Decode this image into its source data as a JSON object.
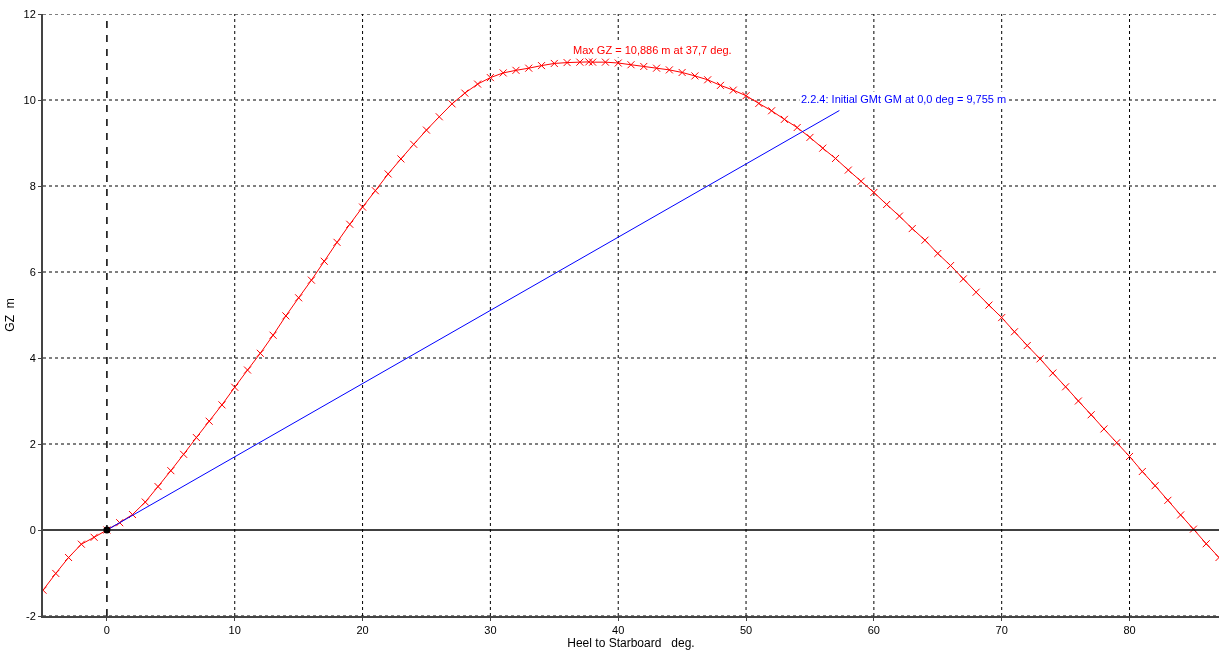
{
  "chart_data": {
    "type": "line",
    "xlabel": "Heel to Starboard   deg.",
    "ylabel": "GZ  m",
    "xlim": [
      -5,
      87
    ],
    "xticks": [
      0,
      10,
      20,
      30,
      40,
      50,
      60,
      70,
      80
    ],
    "ylim": [
      -2,
      12
    ],
    "yticks": [
      -2,
      0,
      2,
      4,
      6,
      8,
      10,
      12
    ],
    "grid": true,
    "series": [
      {
        "color": "#ff0000",
        "marker": "cross",
        "line_style": "solid",
        "x": [
          -5,
          -4,
          -3,
          -2,
          -1,
          0,
          1,
          2,
          3,
          4,
          5,
          6,
          7,
          8,
          9,
          10,
          11,
          12,
          13,
          14,
          15,
          16,
          17,
          18,
          19,
          20,
          21,
          22,
          23,
          24,
          25,
          26,
          27,
          28,
          29,
          30,
          31,
          32,
          33,
          34,
          35,
          36,
          37,
          37.7,
          38,
          39,
          40,
          41,
          42,
          43,
          44,
          45,
          46,
          47,
          48,
          49,
          50,
          51,
          52,
          53,
          54,
          55,
          56,
          57,
          58,
          59,
          60,
          61,
          62,
          63,
          64,
          65,
          66,
          67,
          68,
          69,
          70,
          71,
          72,
          73,
          74,
          75,
          76,
          77,
          78,
          79,
          80,
          81,
          82,
          83,
          84,
          85,
          86,
          87
        ],
        "values": [
          -1.4,
          -1.01,
          -0.64,
          -0.33,
          -0.17,
          0,
          0.17,
          0.36,
          0.65,
          1.01,
          1.38,
          1.76,
          2.15,
          2.53,
          2.91,
          3.32,
          3.72,
          4.11,
          4.53,
          4.98,
          5.4,
          5.81,
          6.25,
          6.69,
          7.11,
          7.51,
          7.89,
          8.28,
          8.63,
          8.97,
          9.3,
          9.61,
          9.91,
          10.16,
          10.37,
          10.52,
          10.63,
          10.69,
          10.74,
          10.8,
          10.85,
          10.87,
          10.88,
          10.886,
          10.88,
          10.88,
          10.86,
          10.82,
          10.78,
          10.74,
          10.7,
          10.64,
          10.56,
          10.47,
          10.34,
          10.23,
          10.1,
          9.92,
          9.75,
          9.55,
          9.36,
          9.13,
          8.88,
          8.64,
          8.37,
          8.11,
          7.85,
          7.57,
          7.3,
          7.01,
          6.74,
          6.43,
          6.15,
          5.84,
          5.53,
          5.23,
          4.94,
          4.61,
          4.29,
          3.98,
          3.65,
          3.33,
          3,
          2.68,
          2.35,
          2.03,
          1.71,
          1.36,
          1.03,
          0.69,
          0.35,
          0.02,
          -0.32,
          -0.64
        ]
      },
      {
        "color": "#0000ff",
        "marker": "none",
        "line_style": "solid",
        "x": [
          0,
          57.3
        ],
        "values": [
          0,
          9.755
        ]
      },
      {
        "type": "scatter",
        "color": "#000000",
        "marker": "circle",
        "x": [
          0
        ],
        "values": [
          0
        ]
      }
    ],
    "annotations": [
      {
        "text": "Max GZ = 10,886 m at 37,7 deg.",
        "x": 37.7,
        "y": 10.886
      },
      {
        "text": "2.2.4: Initial GMt GM at 0,0 deg = 9,755 m",
        "x": 57.3,
        "y": 9.755
      }
    ],
    "ref_lines": [
      {
        "axis": "x",
        "value": 0,
        "color": "#000000",
        "line_style": "dashed"
      },
      {
        "axis": "y",
        "value": 0,
        "color": "#000000",
        "line_style": "solid"
      }
    ]
  }
}
